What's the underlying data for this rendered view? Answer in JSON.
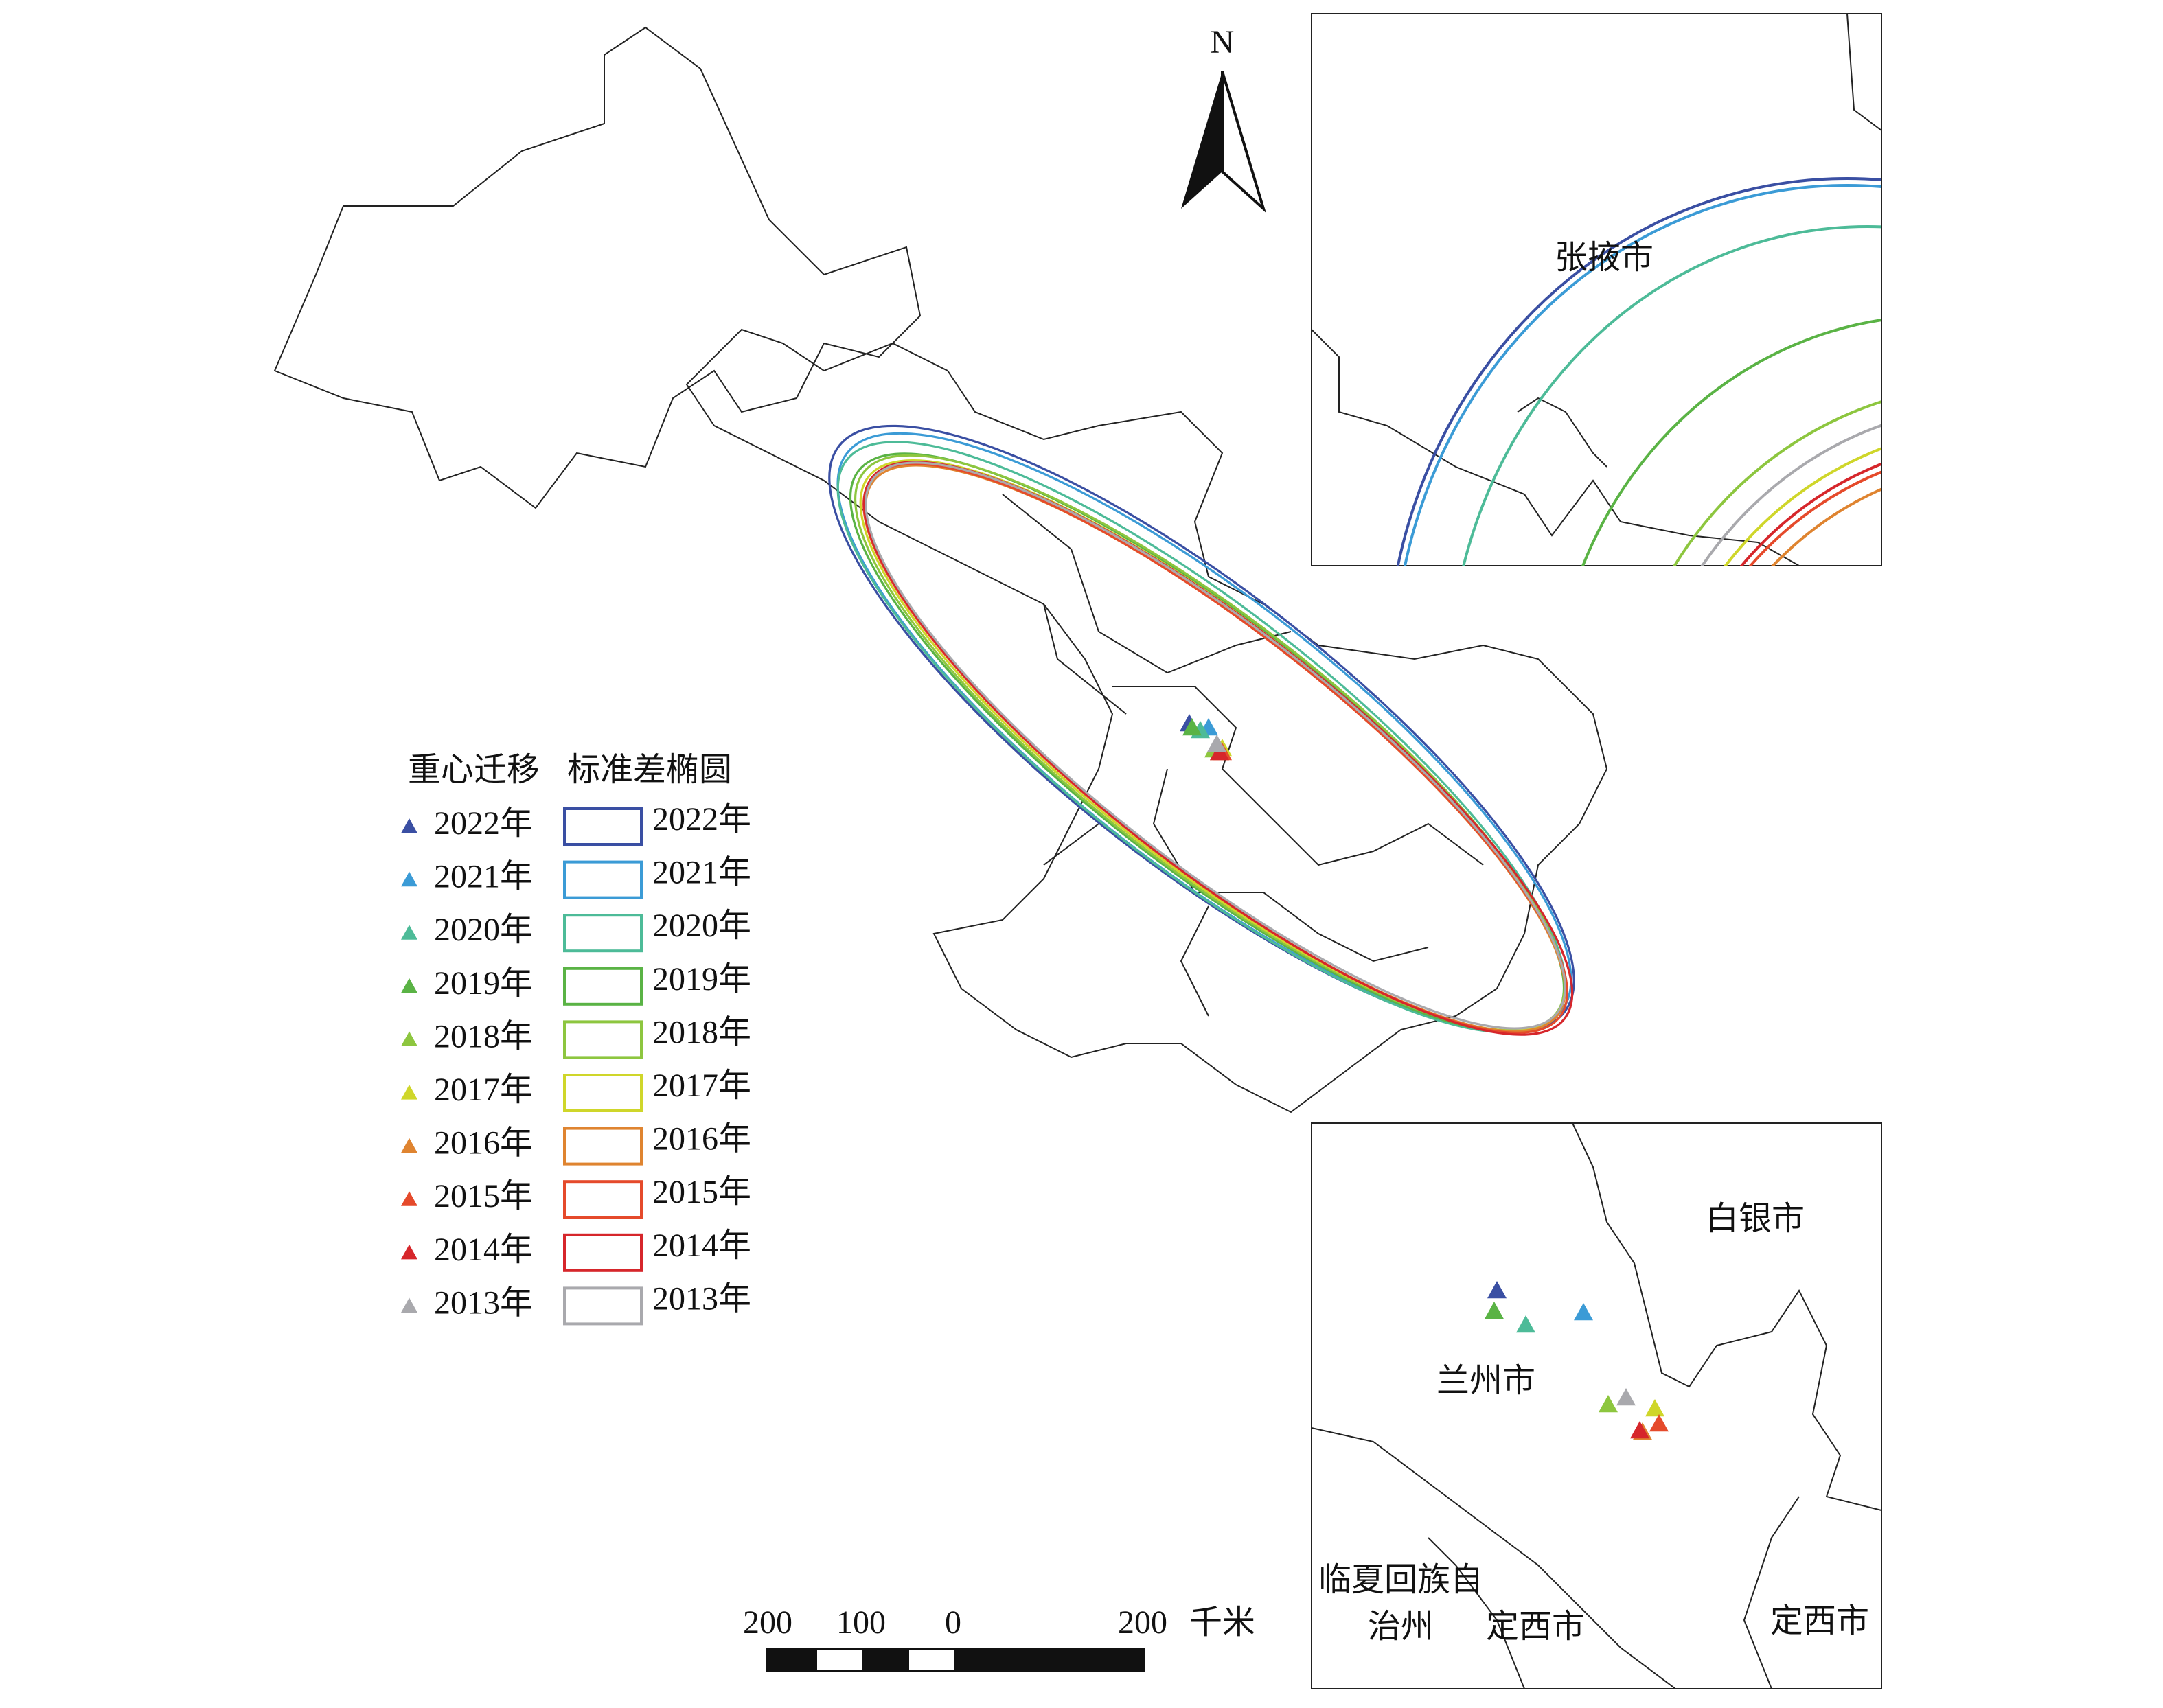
{
  "north_label": "N",
  "legend": {
    "titles": [
      "重心迁移",
      "标准差椭圆"
    ],
    "items": [
      {
        "label": "2022年",
        "color": "#3a4fa3"
      },
      {
        "label": "2021年",
        "color": "#3b9bd6"
      },
      {
        "label": "2020年",
        "color": "#4dbb98"
      },
      {
        "label": "2019年",
        "color": "#5ab345"
      },
      {
        "label": "2018年",
        "color": "#8dc63f"
      },
      {
        "label": "2017年",
        "color": "#cfd62a"
      },
      {
        "label": "2016年",
        "color": "#df8430"
      },
      {
        "label": "2015年",
        "color": "#e54a2b"
      },
      {
        "label": "2014年",
        "color": "#d6262b"
      },
      {
        "label": "2013年",
        "color": "#a9a9ad"
      }
    ]
  },
  "inset_top": {
    "label": "张掖市"
  },
  "inset_bottom": {
    "labels": [
      "白银市",
      "兰州市",
      "临夏回族自",
      "治州",
      "定西市",
      "定西市"
    ]
  },
  "scale_bar": {
    "ticks": [
      "200",
      "100",
      "0",
      "200"
    ],
    "unit": "千米"
  }
}
